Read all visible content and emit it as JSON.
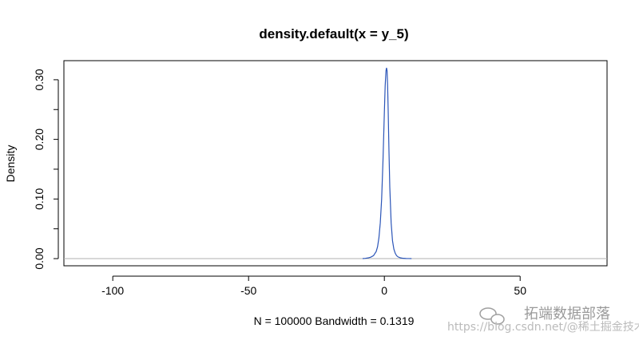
{
  "chart_data": {
    "type": "line",
    "title": "density.default(x = y_5)",
    "xlabel": "N = 100000   Bandwidth = 0.1319",
    "ylabel": "Density",
    "xlim": [
      -118,
      82
    ],
    "ylim": [
      -0.012,
      0.332
    ],
    "xticks": [
      -100,
      -50,
      0,
      50
    ],
    "xtick_labels": [
      "-100",
      "-50",
      "0",
      "50"
    ],
    "yticks": [
      0.0,
      0.1,
      0.2,
      0.3
    ],
    "ytick_labels": [
      "0.00",
      "0.10",
      "0.20",
      "0.30"
    ],
    "baseline": 0,
    "series": [
      {
        "color": "#2b55b8",
        "x": [
          -8,
          -7,
          -6,
          -5,
          -4,
          -3,
          -2.5,
          -2,
          -1.5,
          -1,
          -0.5,
          0,
          0.3,
          0.6,
          0.8,
          1.0,
          1.2,
          1.4,
          1.7,
          2.0,
          2.5,
          3,
          3.5,
          4,
          4.5,
          5,
          6,
          7,
          8,
          9,
          10
        ],
        "y": [
          0.0,
          0.0005,
          0.0012,
          0.0025,
          0.005,
          0.012,
          0.02,
          0.035,
          0.06,
          0.1,
          0.165,
          0.245,
          0.29,
          0.315,
          0.32,
          0.315,
          0.29,
          0.25,
          0.18,
          0.12,
          0.06,
          0.03,
          0.016,
          0.009,
          0.005,
          0.003,
          0.0012,
          0.0005,
          0.0002,
          0.0001,
          0.0
        ]
      }
    ]
  },
  "watermark": {
    "line1": "拓端数据部落",
    "line2": "https://blog.csdn.net/@稀土掘金技术社区"
  }
}
